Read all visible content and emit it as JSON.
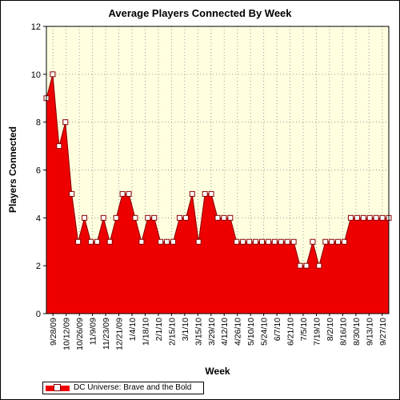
{
  "chart_data": {
    "type": "area",
    "title": "Average Players Connected By Week",
    "xlabel": "Week",
    "ylabel": "Players Connected",
    "ylim": [
      0,
      12
    ],
    "yticks": [
      "0",
      "2",
      "4",
      "6",
      "8",
      "10",
      "12"
    ],
    "xtick_labels": [
      "9/28/09",
      "10/12/09",
      "10/26/09",
      "11/9/09",
      "11/23/09",
      "12/21/09",
      "1/4/10",
      "1/18/10",
      "2/1/10",
      "2/15/10",
      "3/1/10",
      "3/15/10",
      "3/29/10",
      "4/12/10",
      "4/26/10",
      "5/10/10",
      "5/24/10",
      "6/7/10",
      "6/21/10",
      "7/5/10",
      "7/19/10",
      "8/2/10",
      "8/16/10",
      "8/30/10",
      "9/13/10",
      "9/27/10"
    ],
    "grid": true,
    "legend_position": "bottom-left",
    "colors": {
      "fill": "#ee0000",
      "line": "#880000",
      "marker": "#ffffff",
      "plot_background": "#ffffe0"
    },
    "series": [
      {
        "name": "DC Universe: Brave and the Bold",
        "values": [
          9,
          10,
          7,
          8,
          5,
          3,
          4,
          3,
          3,
          4,
          3,
          4,
          5,
          5,
          4,
          3,
          4,
          4,
          3,
          3,
          3,
          4,
          4,
          5,
          3,
          5,
          5,
          4,
          4,
          4,
          3,
          3,
          3,
          3,
          3,
          3,
          3,
          3,
          3,
          3,
          2,
          2,
          3,
          2,
          3,
          3,
          3,
          3,
          4,
          4,
          4,
          4,
          4,
          4,
          4
        ]
      }
    ]
  }
}
